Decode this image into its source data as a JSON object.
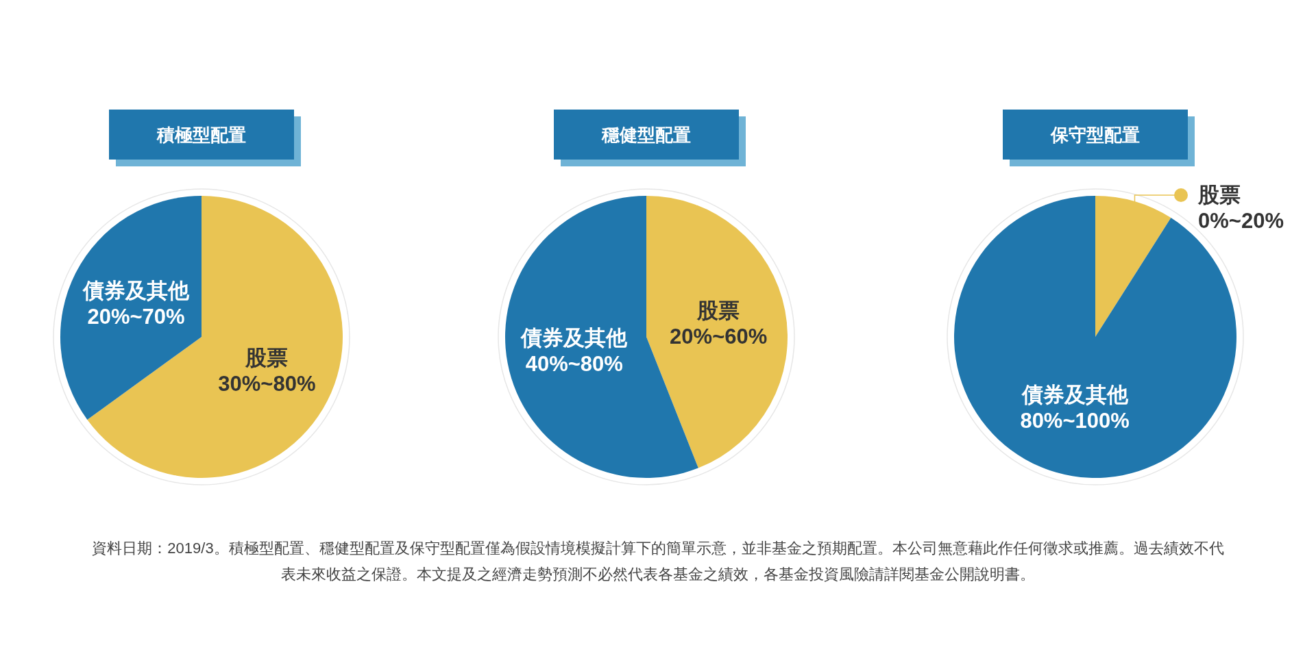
{
  "chart_data": [
    {
      "type": "pie",
      "title": "積極型配置",
      "categories": [
        "股票",
        "債券及其他"
      ],
      "values": [
        65,
        35
      ],
      "colors": [
        "#e9c453",
        "#2077ad"
      ],
      "annotations": [
        {
          "text": "30%~80%",
          "x": "股票"
        },
        {
          "text": "20%~70%",
          "x": "債券及其他"
        },
        "資料日期：2019/3。積極型配置、穩健型配置及保守型配置僅為假設情境模擬計算下的簡單示意，並非基金之預期配置。本公司無意藉此作任何徵求或推薦。過去績效不代表未來收益之保證。本文提及之經濟走勢預測不必然代表各基金之績效，各基金投資風險請詳閱基金公開說明書。"
      ]
    },
    {
      "type": "pie",
      "title": "穩健型配置",
      "categories": [
        "股票",
        "債券及其他"
      ],
      "values": [
        44,
        56
      ],
      "colors": [
        "#e9c453",
        "#2077ad"
      ],
      "annotations": [
        {
          "text": "20%~60%",
          "x": "股票"
        },
        {
          "text": "40%~80%",
          "x": "債券及其他"
        }
      ]
    },
    {
      "type": "pie",
      "title": "保守型配置",
      "categories": [
        "股票",
        "債券及其他"
      ],
      "values": [
        9,
        91
      ],
      "colors": [
        "#e9c453",
        "#2077ad"
      ],
      "annotations": [
        {
          "text": "0%~20%",
          "x": "股票"
        },
        {
          "text": "80%~100%",
          "x": "債券及其他"
        }
      ]
    }
  ]
}
